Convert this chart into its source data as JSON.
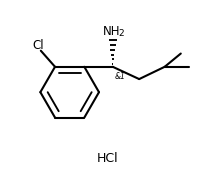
{
  "background_color": "#ffffff",
  "line_color": "#000000",
  "line_width": 1.5,
  "text_color": "#000000",
  "hcl_label": "HCl",
  "cl_label": "Cl",
  "stereo_label": "&1",
  "figsize": [
    2.15,
    1.73
  ],
  "dpi": 100,
  "xlim": [
    0,
    10
  ],
  "ylim": [
    0,
    9
  ]
}
